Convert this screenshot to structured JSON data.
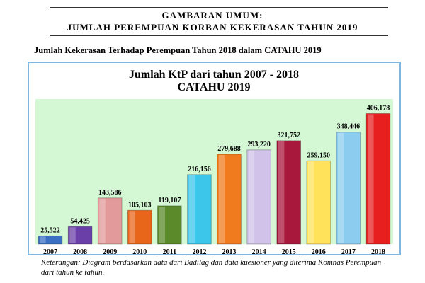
{
  "header": {
    "title": "GAMBARAN UMUM:",
    "subtitle": "JUMLAH PEREMPUAN KORBAN KEKERASAN TAHUN 2019"
  },
  "section_title": "Jumlah Kekerasan Terhadap Perempuan Tahun 2018 dalam CATAHU 2019",
  "chart_data": {
    "type": "bar",
    "title": "Jumlah KtP dari tahun 2007 - 2018",
    "subtitle": "CATAHU 2019",
    "categories": [
      "2007",
      "2008",
      "2009",
      "2010",
      "2011",
      "2012",
      "2013",
      "2014",
      "2015",
      "2016",
      "2017",
      "2018"
    ],
    "values": [
      25522,
      54425,
      143586,
      105103,
      119107,
      216156,
      279688,
      293220,
      321752,
      259150,
      348446,
      406178
    ],
    "value_labels": [
      "25,522",
      "54,425",
      "143,586",
      "105,103",
      "119,107",
      "216,156",
      "279,688",
      "293,220",
      "321,752",
      "259,150",
      "348,446",
      "406,178"
    ],
    "colors": [
      "#3b6fc4",
      "#6a3fa8",
      "#e39a9a",
      "#e8661a",
      "#5b8a2a",
      "#3cc6ea",
      "#f07a1e",
      "#d0c2e8",
      "#a8173c",
      "#ffe25a",
      "#8ccdef",
      "#e81f1f"
    ],
    "background": "#d4f7d4"
  },
  "caption": "Keterangan: Diagram berdasarkan data dari Badilag dan data kuesioner yang diterima Komnas Perempuan dari tahun ke tahun."
}
